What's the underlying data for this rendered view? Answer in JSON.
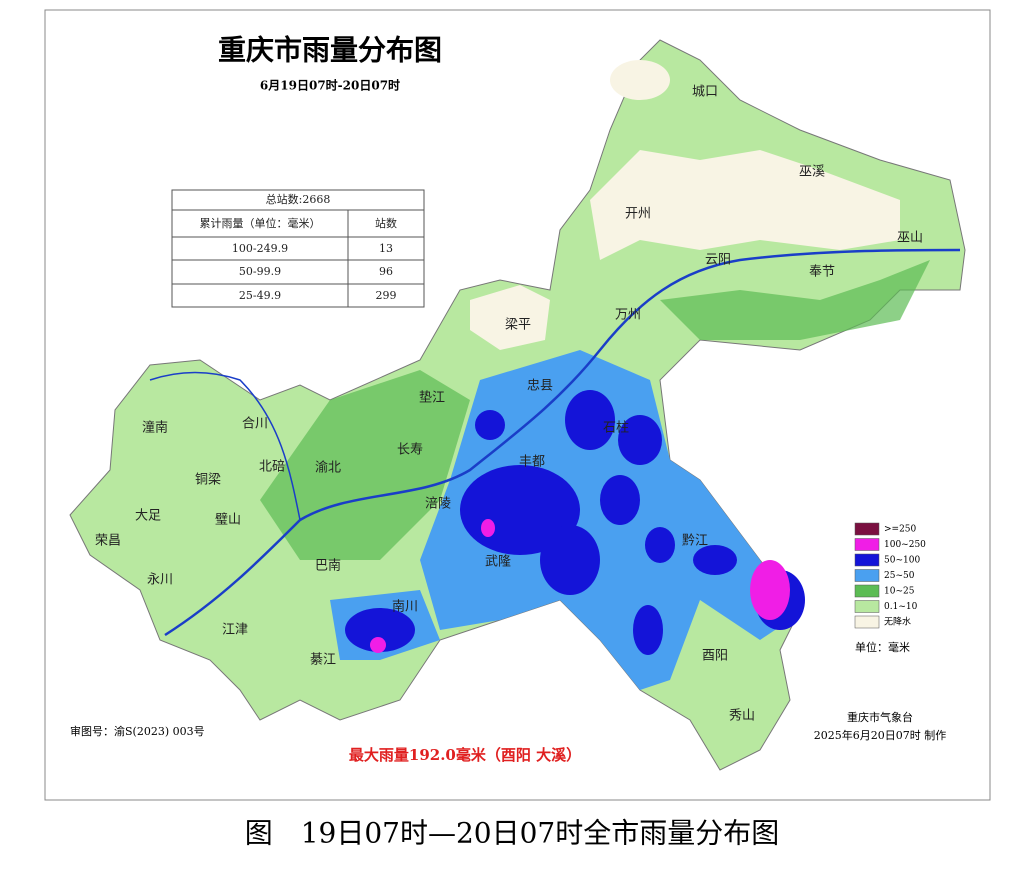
{
  "header": {
    "title": "重庆市雨量分布图",
    "subtitle": "6月19日07时-20日07时"
  },
  "table": {
    "total": "总站数:2668",
    "columns": [
      "累计雨量（单位：毫米）",
      "站数"
    ],
    "rows": [
      [
        "100-249.9",
        13
      ],
      [
        "50-99.9",
        96
      ],
      [
        "25-49.9",
        299
      ]
    ]
  },
  "places": [
    "城口",
    "巫溪",
    "开州",
    "云阳",
    "巫山",
    "奉节",
    "梁平",
    "万州",
    "忠县",
    "垫江",
    "石柱",
    "长寿",
    "丰都",
    "涪陵",
    "潼南",
    "合川",
    "北碚",
    "渝北",
    "铜梁",
    "大足",
    "璧山",
    "荣昌",
    "永川",
    "巴南",
    "武隆",
    "黔江",
    "江津",
    "綦江",
    "南川",
    "酉阳",
    "秀山"
  ],
  "legend": {
    "items": [
      {
        "label": ">=250",
        "color": "#7a1040"
      },
      {
        "label": "100~250",
        "color": "#f01ee6"
      },
      {
        "label": "50~100",
        "color": "#1414d8"
      },
      {
        "label": "25~50",
        "color": "#4aa0f0"
      },
      {
        "label": "10~25",
        "color": "#5cbc54"
      },
      {
        "label": "0.1~10",
        "color": "#b8e8a0"
      },
      {
        "label": "无降水",
        "color": "#f8f4e4"
      }
    ],
    "unit": "单位：毫米"
  },
  "footer": {
    "approval": "审图号：渝S(2023) 003号",
    "max_rain": "最大雨量192.0毫米（酉阳 大溪）",
    "agency": "重庆市气象台",
    "made": "2025年6月20日07时 制作"
  },
  "caption": "图　19日07时—20日07时全市雨量分布图"
}
